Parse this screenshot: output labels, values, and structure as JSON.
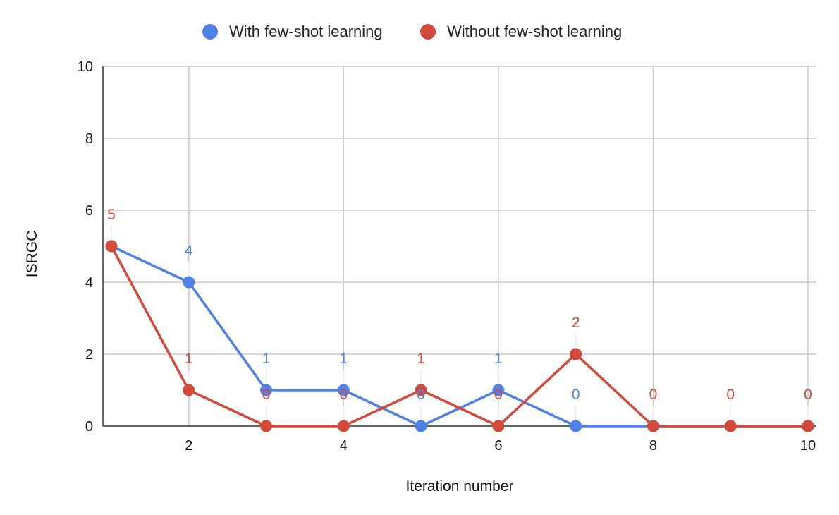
{
  "chart_data": {
    "type": "line",
    "title": "",
    "xlabel": "Iteration number",
    "ylabel": "ISRGC",
    "x": [
      1,
      2,
      3,
      4,
      5,
      6,
      7,
      8,
      9,
      10
    ],
    "xlim": [
      1,
      10
    ],
    "ylim": [
      0,
      10
    ],
    "x_ticks": [
      2,
      4,
      6,
      8,
      10
    ],
    "y_ticks": [
      0,
      2,
      4,
      6,
      8,
      10
    ],
    "grid": true,
    "legend_position": "top",
    "series": [
      {
        "name": "With few-shot learning",
        "color": "#4f81e8",
        "values": [
          5,
          4,
          1,
          1,
          0,
          1,
          0,
          0,
          0,
          0
        ],
        "labels": [
          null,
          "4",
          "1",
          "1",
          "0",
          "1",
          "0",
          null,
          null,
          null
        ]
      },
      {
        "name": "Without few-shot learning",
        "color": "#d44a3a",
        "values": [
          5,
          1,
          0,
          0,
          1,
          0,
          2,
          0,
          0,
          0
        ],
        "labels": [
          "5",
          "1",
          "0",
          "0",
          "1",
          "0",
          "2",
          "0",
          "0",
          "0"
        ]
      }
    ]
  }
}
